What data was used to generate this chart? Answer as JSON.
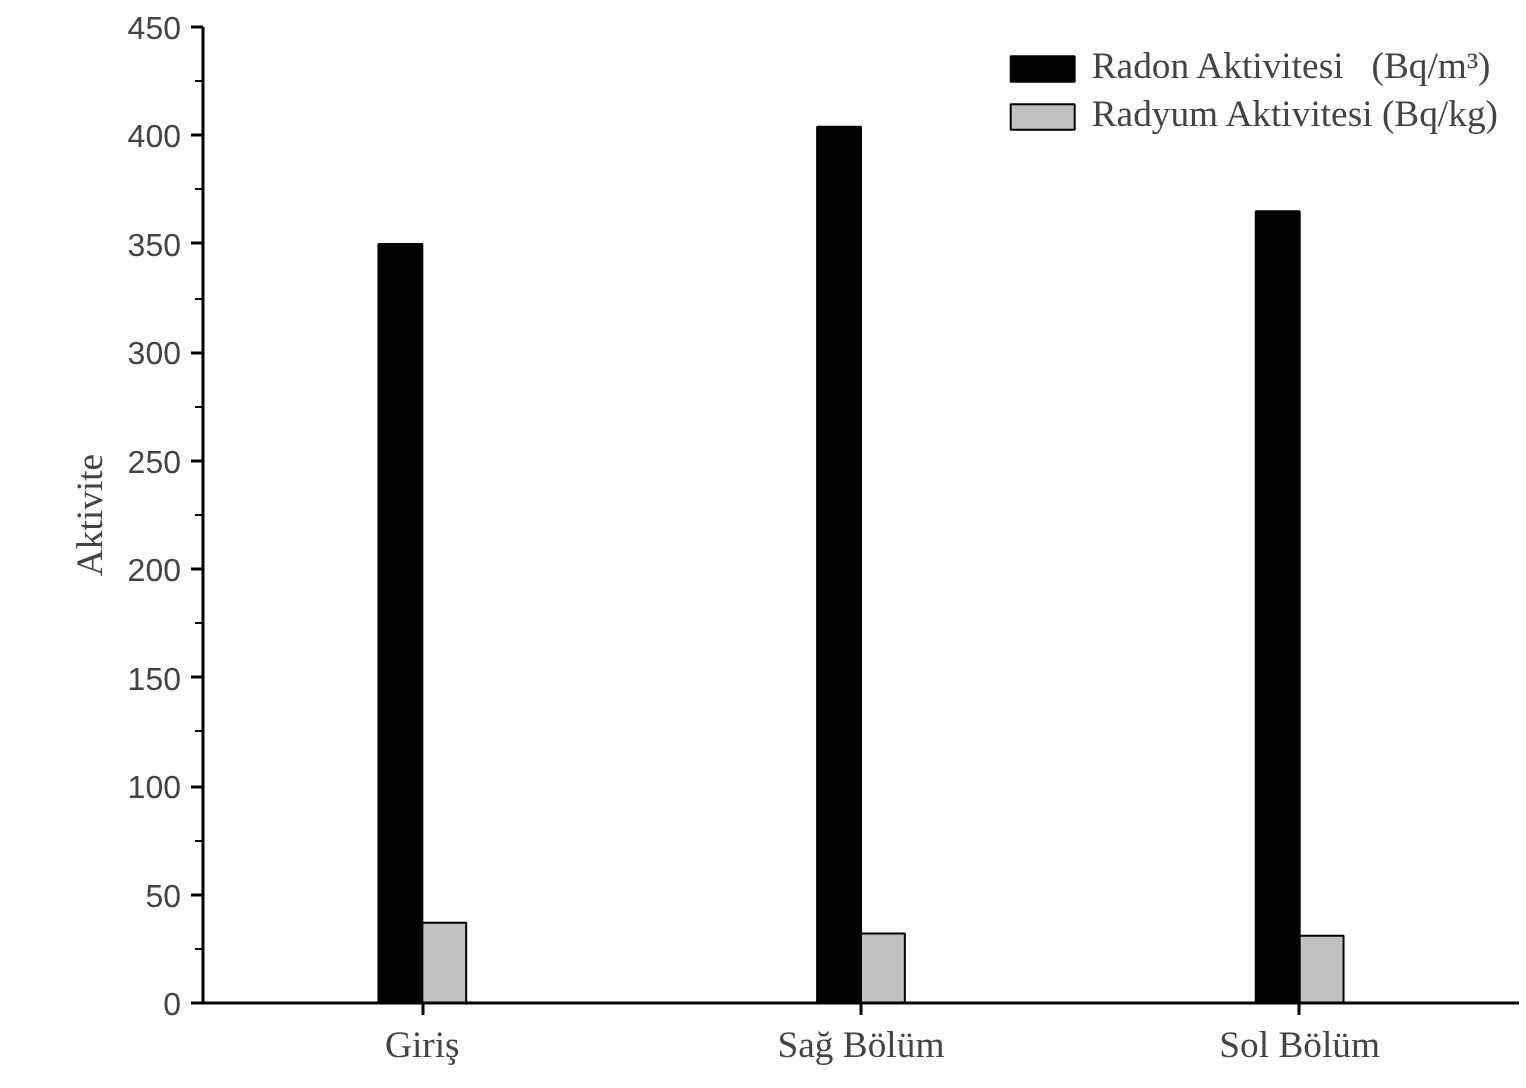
{
  "chart_data": {
    "type": "bar",
    "ylabel": "Aktivite",
    "categories": [
      "Giriş",
      "Sağ Bölüm",
      "Sol Bölüm"
    ],
    "series": [
      {
        "name": "Radon Aktivitesi   (Bq/m³)",
        "color": "#000000",
        "values": [
          350,
          404,
          365
        ]
      },
      {
        "name": "Radyum Aktivitesi (Bq/kg)",
        "color": "#c0c0c0",
        "values": [
          37,
          32,
          31
        ]
      }
    ],
    "ylim": [
      0,
      450
    ],
    "yticks": [
      0,
      50,
      100,
      150,
      200,
      250,
      300,
      350,
      400,
      450
    ],
    "grid": false,
    "legend": "top right"
  }
}
